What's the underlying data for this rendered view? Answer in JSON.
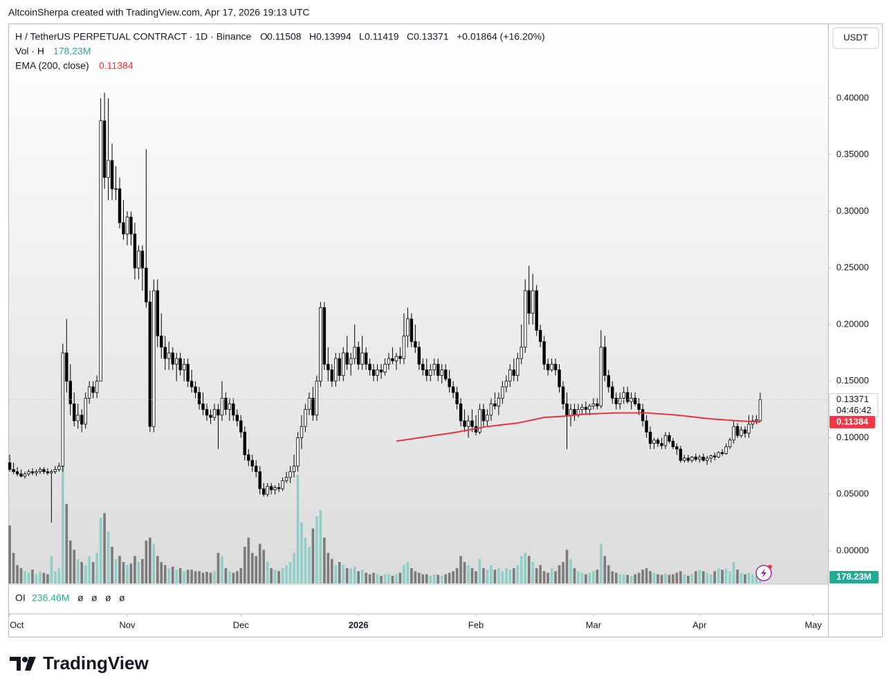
{
  "header": "AltcoinSherpa created with TradingView.com, Apr 17, 2026 19:13 UTC",
  "chart_data": {
    "type": "candlestick",
    "title": "H / TetherUS PERPETUAL CONTRACT · 1D · Binance",
    "ohlc_prefixes": [
      "O",
      "H",
      "L",
      "C"
    ],
    "change": "+0.01864 (+16.20%)",
    "volume_title": "Vol · H",
    "volume_label": "178.23M",
    "currency": "USDT",
    "countdown": "04:46:42",
    "up_color": "#ffffff",
    "down_color": "#000000",
    "wick_color": "#000000",
    "volume_up_color": "#8fcfc8",
    "volume_down_color": "#7b7b7b",
    "candles": [
      [
        0.078,
        0.085,
        0.07,
        0.072
      ],
      [
        0.072,
        0.078,
        0.068,
        0.07
      ],
      [
        0.07,
        0.074,
        0.066,
        0.068
      ],
      [
        0.068,
        0.072,
        0.065,
        0.066
      ],
      [
        0.066,
        0.07,
        0.064,
        0.068
      ],
      [
        0.068,
        0.072,
        0.066,
        0.07
      ],
      [
        0.07,
        0.073,
        0.067,
        0.069
      ],
      [
        0.069,
        0.072,
        0.066,
        0.07
      ],
      [
        0.07,
        0.074,
        0.068,
        0.072
      ],
      [
        0.072,
        0.074,
        0.068,
        0.07
      ],
      [
        0.07,
        0.073,
        0.067,
        0.069
      ],
      [
        0.069,
        0.072,
        0.025,
        0.07
      ],
      [
        0.07,
        0.075,
        0.068,
        0.072
      ],
      [
        0.072,
        0.078,
        0.07,
        0.075
      ],
      [
        0.075,
        0.183,
        0.07,
        0.175
      ],
      [
        0.175,
        0.205,
        0.14,
        0.15
      ],
      [
        0.15,
        0.165,
        0.12,
        0.13
      ],
      [
        0.13,
        0.14,
        0.11,
        0.115
      ],
      [
        0.115,
        0.13,
        0.108,
        0.12
      ],
      [
        0.12,
        0.125,
        0.105,
        0.112
      ],
      [
        0.112,
        0.14,
        0.108,
        0.135
      ],
      [
        0.135,
        0.15,
        0.13,
        0.145
      ],
      [
        0.145,
        0.15,
        0.135,
        0.14
      ],
      [
        0.14,
        0.155,
        0.135,
        0.15
      ],
      [
        0.15,
        0.4,
        0.15,
        0.38
      ],
      [
        0.38,
        0.405,
        0.32,
        0.33
      ],
      [
        0.33,
        0.4,
        0.31,
        0.345
      ],
      [
        0.345,
        0.36,
        0.31,
        0.32
      ],
      [
        0.32,
        0.34,
        0.31,
        0.32
      ],
      [
        0.32,
        0.33,
        0.285,
        0.29
      ],
      [
        0.29,
        0.31,
        0.275,
        0.28
      ],
      [
        0.28,
        0.3,
        0.27,
        0.295
      ],
      [
        0.295,
        0.3,
        0.27,
        0.28
      ],
      [
        0.28,
        0.29,
        0.24,
        0.25
      ],
      [
        0.25,
        0.27,
        0.24,
        0.265
      ],
      [
        0.265,
        0.27,
        0.23,
        0.25
      ],
      [
        0.25,
        0.355,
        0.215,
        0.22
      ],
      [
        0.22,
        0.23,
        0.105,
        0.11
      ],
      [
        0.11,
        0.24,
        0.105,
        0.23
      ],
      [
        0.23,
        0.24,
        0.18,
        0.19
      ],
      [
        0.19,
        0.21,
        0.17,
        0.18
      ],
      [
        0.18,
        0.19,
        0.16,
        0.17
      ],
      [
        0.17,
        0.185,
        0.16,
        0.175
      ],
      [
        0.175,
        0.18,
        0.16,
        0.165
      ],
      [
        0.165,
        0.175,
        0.15,
        0.17
      ],
      [
        0.17,
        0.175,
        0.155,
        0.16
      ],
      [
        0.16,
        0.17,
        0.15,
        0.165
      ],
      [
        0.165,
        0.17,
        0.145,
        0.15
      ],
      [
        0.15,
        0.16,
        0.14,
        0.145
      ],
      [
        0.145,
        0.15,
        0.135,
        0.14
      ],
      [
        0.14,
        0.145,
        0.125,
        0.13
      ],
      [
        0.13,
        0.14,
        0.12,
        0.125
      ],
      [
        0.125,
        0.13,
        0.115,
        0.12
      ],
      [
        0.12,
        0.125,
        0.112,
        0.118
      ],
      [
        0.118,
        0.13,
        0.115,
        0.125
      ],
      [
        0.125,
        0.13,
        0.09,
        0.12
      ],
      [
        0.12,
        0.15,
        0.115,
        0.135
      ],
      [
        0.135,
        0.14,
        0.12,
        0.125
      ],
      [
        0.125,
        0.135,
        0.115,
        0.13
      ],
      [
        0.13,
        0.135,
        0.115,
        0.12
      ],
      [
        0.12,
        0.125,
        0.11,
        0.115
      ],
      [
        0.115,
        0.12,
        0.1,
        0.105
      ],
      [
        0.105,
        0.11,
        0.08,
        0.085
      ],
      [
        0.085,
        0.09,
        0.075,
        0.08
      ],
      [
        0.08,
        0.085,
        0.07,
        0.075
      ],
      [
        0.075,
        0.08,
        0.065,
        0.07
      ],
      [
        0.07,
        0.075,
        0.05,
        0.055
      ],
      [
        0.055,
        0.06,
        0.048,
        0.05
      ],
      [
        0.05,
        0.06,
        0.048,
        0.057
      ],
      [
        0.057,
        0.06,
        0.05,
        0.054
      ],
      [
        0.054,
        0.058,
        0.05,
        0.056
      ],
      [
        0.056,
        0.06,
        0.052,
        0.055
      ],
      [
        0.055,
        0.065,
        0.053,
        0.062
      ],
      [
        0.062,
        0.07,
        0.06,
        0.065
      ],
      [
        0.065,
        0.075,
        0.06,
        0.07
      ],
      [
        0.07,
        0.085,
        0.065,
        0.075
      ],
      [
        0.075,
        0.105,
        0.07,
        0.1
      ],
      [
        0.1,
        0.12,
        0.09,
        0.11
      ],
      [
        0.11,
        0.13,
        0.105,
        0.125
      ],
      [
        0.125,
        0.14,
        0.12,
        0.135
      ],
      [
        0.135,
        0.145,
        0.115,
        0.12
      ],
      [
        0.12,
        0.155,
        0.115,
        0.15
      ],
      [
        0.15,
        0.22,
        0.145,
        0.215
      ],
      [
        0.215,
        0.22,
        0.16,
        0.165
      ],
      [
        0.165,
        0.18,
        0.15,
        0.16
      ],
      [
        0.16,
        0.165,
        0.145,
        0.15
      ],
      [
        0.15,
        0.175,
        0.145,
        0.17
      ],
      [
        0.17,
        0.175,
        0.15,
        0.155
      ],
      [
        0.155,
        0.18,
        0.15,
        0.175
      ],
      [
        0.175,
        0.19,
        0.16,
        0.165
      ],
      [
        0.165,
        0.175,
        0.155,
        0.17
      ],
      [
        0.17,
        0.2,
        0.165,
        0.18
      ],
      [
        0.18,
        0.185,
        0.16,
        0.165
      ],
      [
        0.165,
        0.19,
        0.16,
        0.175
      ],
      [
        0.175,
        0.18,
        0.16,
        0.165
      ],
      [
        0.165,
        0.17,
        0.155,
        0.16
      ],
      [
        0.16,
        0.165,
        0.15,
        0.155
      ],
      [
        0.155,
        0.165,
        0.15,
        0.16
      ],
      [
        0.16,
        0.165,
        0.152,
        0.158
      ],
      [
        0.158,
        0.17,
        0.155,
        0.165
      ],
      [
        0.165,
        0.175,
        0.16,
        0.17
      ],
      [
        0.17,
        0.18,
        0.165,
        0.168
      ],
      [
        0.168,
        0.175,
        0.16,
        0.172
      ],
      [
        0.172,
        0.18,
        0.165,
        0.17
      ],
      [
        0.17,
        0.21,
        0.165,
        0.19
      ],
      [
        0.19,
        0.215,
        0.18,
        0.205
      ],
      [
        0.205,
        0.21,
        0.18,
        0.185
      ],
      [
        0.185,
        0.2,
        0.175,
        0.18
      ],
      [
        0.18,
        0.185,
        0.16,
        0.165
      ],
      [
        0.165,
        0.17,
        0.155,
        0.16
      ],
      [
        0.16,
        0.17,
        0.15,
        0.155
      ],
      [
        0.155,
        0.165,
        0.15,
        0.16
      ],
      [
        0.16,
        0.17,
        0.155,
        0.165
      ],
      [
        0.165,
        0.17,
        0.15,
        0.155
      ],
      [
        0.155,
        0.165,
        0.148,
        0.16
      ],
      [
        0.16,
        0.165,
        0.15,
        0.152
      ],
      [
        0.152,
        0.16,
        0.14,
        0.145
      ],
      [
        0.145,
        0.15,
        0.135,
        0.14
      ],
      [
        0.14,
        0.145,
        0.125,
        0.13
      ],
      [
        0.13,
        0.135,
        0.11,
        0.115
      ],
      [
        0.115,
        0.125,
        0.105,
        0.11
      ],
      [
        0.11,
        0.12,
        0.1,
        0.115
      ],
      [
        0.115,
        0.125,
        0.105,
        0.11
      ],
      [
        0.11,
        0.12,
        0.102,
        0.105
      ],
      [
        0.105,
        0.13,
        0.103,
        0.125
      ],
      [
        0.125,
        0.13,
        0.11,
        0.115
      ],
      [
        0.115,
        0.125,
        0.11,
        0.12
      ],
      [
        0.12,
        0.135,
        0.115,
        0.13
      ],
      [
        0.13,
        0.14,
        0.125,
        0.128
      ],
      [
        0.128,
        0.14,
        0.12,
        0.135
      ],
      [
        0.135,
        0.15,
        0.13,
        0.145
      ],
      [
        0.145,
        0.155,
        0.14,
        0.15
      ],
      [
        0.15,
        0.165,
        0.145,
        0.16
      ],
      [
        0.16,
        0.17,
        0.15,
        0.155
      ],
      [
        0.155,
        0.175,
        0.15,
        0.17
      ],
      [
        0.17,
        0.2,
        0.165,
        0.18
      ],
      [
        0.18,
        0.24,
        0.175,
        0.23
      ],
      [
        0.23,
        0.252,
        0.2,
        0.21
      ],
      [
        0.21,
        0.245,
        0.2,
        0.23
      ],
      [
        0.23,
        0.235,
        0.19,
        0.195
      ],
      [
        0.195,
        0.2,
        0.18,
        0.185
      ],
      [
        0.185,
        0.19,
        0.16,
        0.165
      ],
      [
        0.165,
        0.17,
        0.155,
        0.16
      ],
      [
        0.16,
        0.17,
        0.158,
        0.165
      ],
      [
        0.165,
        0.17,
        0.155,
        0.16
      ],
      [
        0.16,
        0.165,
        0.14,
        0.145
      ],
      [
        0.145,
        0.15,
        0.125,
        0.13
      ],
      [
        0.13,
        0.14,
        0.09,
        0.12
      ],
      [
        0.12,
        0.13,
        0.11,
        0.125
      ],
      [
        0.125,
        0.13,
        0.115,
        0.12
      ],
      [
        0.12,
        0.13,
        0.118,
        0.125
      ],
      [
        0.125,
        0.13,
        0.12,
        0.127
      ],
      [
        0.127,
        0.132,
        0.12,
        0.125
      ],
      [
        0.125,
        0.13,
        0.12,
        0.128
      ],
      [
        0.128,
        0.135,
        0.125,
        0.13
      ],
      [
        0.13,
        0.135,
        0.125,
        0.128
      ],
      [
        0.128,
        0.195,
        0.126,
        0.18
      ],
      [
        0.18,
        0.19,
        0.15,
        0.155
      ],
      [
        0.155,
        0.16,
        0.14,
        0.145
      ],
      [
        0.145,
        0.15,
        0.13,
        0.135
      ],
      [
        0.135,
        0.14,
        0.125,
        0.13
      ],
      [
        0.13,
        0.14,
        0.125,
        0.135
      ],
      [
        0.135,
        0.145,
        0.13,
        0.14
      ],
      [
        0.14,
        0.145,
        0.13,
        0.132
      ],
      [
        0.132,
        0.14,
        0.125,
        0.135
      ],
      [
        0.135,
        0.14,
        0.128,
        0.13
      ],
      [
        0.13,
        0.135,
        0.12,
        0.125
      ],
      [
        0.125,
        0.13,
        0.11,
        0.115
      ],
      [
        0.115,
        0.12,
        0.1,
        0.105
      ],
      [
        0.105,
        0.11,
        0.09,
        0.095
      ],
      [
        0.095,
        0.1,
        0.09,
        0.098
      ],
      [
        0.098,
        0.1,
        0.092,
        0.095
      ],
      [
        0.095,
        0.1,
        0.09,
        0.093
      ],
      [
        0.093,
        0.105,
        0.09,
        0.102
      ],
      [
        0.102,
        0.105,
        0.095,
        0.097
      ],
      [
        0.097,
        0.1,
        0.09,
        0.092
      ],
      [
        0.092,
        0.095,
        0.085,
        0.09
      ],
      [
        0.09,
        0.093,
        0.078,
        0.08
      ],
      [
        0.08,
        0.085,
        0.078,
        0.082
      ],
      [
        0.082,
        0.085,
        0.078,
        0.08
      ],
      [
        0.08,
        0.084,
        0.078,
        0.083
      ],
      [
        0.083,
        0.086,
        0.079,
        0.081
      ],
      [
        0.081,
        0.085,
        0.078,
        0.083
      ],
      [
        0.083,
        0.086,
        0.079,
        0.08
      ],
      [
        0.08,
        0.084,
        0.076,
        0.082
      ],
      [
        0.082,
        0.085,
        0.078,
        0.084
      ],
      [
        0.084,
        0.087,
        0.08,
        0.083
      ],
      [
        0.083,
        0.088,
        0.082,
        0.087
      ],
      [
        0.087,
        0.09,
        0.084,
        0.086
      ],
      [
        0.086,
        0.095,
        0.085,
        0.092
      ],
      [
        0.092,
        0.1,
        0.09,
        0.098
      ],
      [
        0.098,
        0.115,
        0.095,
        0.11
      ],
      [
        0.11,
        0.113,
        0.1,
        0.102
      ],
      [
        0.102,
        0.11,
        0.1,
        0.107
      ],
      [
        0.107,
        0.11,
        0.1,
        0.104
      ],
      [
        0.104,
        0.12,
        0.1,
        0.112
      ],
      [
        0.112,
        0.12,
        0.108,
        0.115
      ],
      [
        0.115,
        0.12,
        0.112,
        0.116
      ],
      [
        0.11508,
        0.13994,
        0.11419,
        0.13371
      ]
    ],
    "volume": [
      1900,
      1000,
      600,
      500,
      400,
      350,
      450,
      300,
      400,
      350,
      300,
      900,
      400,
      500,
      4400,
      2600,
      1400,
      1100,
      800,
      700,
      600,
      900,
      700,
      1000,
      2150,
      2300,
      1700,
      1200,
      800,
      900,
      700,
      600,
      650,
      900,
      700,
      800,
      1400,
      1500,
      1300,
      900,
      700,
      600,
      500,
      550,
      450,
      500,
      400,
      450,
      450,
      400,
      400,
      350,
      380,
      350,
      400,
      1000,
      900,
      500,
      400,
      350,
      400,
      500,
      1200,
      1500,
      1000,
      900,
      1300,
      1100,
      700,
      500,
      450,
      400,
      500,
      600,
      700,
      1000,
      3560,
      2000,
      1500,
      1200,
      1800,
      2200,
      2400,
      1500,
      1000,
      800,
      600,
      700,
      600,
      500,
      500,
      550,
      400,
      450,
      350,
      300,
      350,
      300,
      250,
      300,
      300,
      250,
      300,
      350,
      600,
      700,
      500,
      400,
      350,
      300,
      300,
      250,
      300,
      280,
      250,
      300,
      350,
      400,
      500,
      900,
      700,
      600,
      500,
      400,
      800,
      500,
      450,
      600,
      450,
      500,
      400,
      500,
      450,
      500,
      600,
      900,
      1000,
      900,
      700,
      500,
      600,
      400,
      350,
      500,
      400,
      600,
      700,
      1100,
      800,
      500,
      400,
      350,
      300,
      350,
      400,
      450,
      1300,
      900,
      600,
      400,
      350,
      300,
      300,
      280,
      250,
      300,
      350,
      450,
      500,
      400,
      350,
      300,
      280,
      320,
      280,
      300,
      350,
      400,
      300,
      250,
      300,
      400,
      450,
      400,
      350,
      300,
      400,
      500,
      450,
      500,
      400,
      700,
      450,
      350,
      300,
      350,
      300,
      250,
      178.23
    ],
    "volume_ylim": [
      0,
      4600
    ],
    "ema": {
      "name": "EMA (200, close)",
      "color": "#e8323c",
      "x": [
        102,
        110,
        118,
        126,
        134,
        141,
        146,
        152,
        160,
        168,
        176,
        184,
        192,
        198
      ],
      "values": [
        0.097,
        0.101,
        0.105,
        0.11,
        0.113,
        0.118,
        0.119,
        0.121,
        0.122,
        0.122,
        0.12,
        0.117,
        0.115,
        0.11384
      ]
    },
    "ylim": [
      -0.0287,
      0.4654
    ],
    "yticks": [
      {
        "value": 0,
        "label": "0.00000"
      },
      {
        "value": 0.05,
        "label": "0.05000"
      },
      {
        "value": 0.1,
        "label": "0.10000"
      },
      {
        "value": 0.15,
        "label": "0.15000"
      },
      {
        "value": 0.2,
        "label": "0.20000"
      },
      {
        "value": 0.25,
        "label": "0.25000"
      },
      {
        "value": 0.3,
        "label": "0.30000"
      },
      {
        "value": 0.35,
        "label": "0.35000"
      },
      {
        "value": 0.4,
        "label": "0.40000"
      }
    ],
    "xlim": [
      -0.2,
      215.9
    ],
    "xticks": [
      {
        "value": 0,
        "label": "Oct"
      },
      {
        "value": 31,
        "label": "Nov"
      },
      {
        "value": 61,
        "label": "Dec"
      },
      {
        "value": 92,
        "label": "2026"
      },
      {
        "value": 123,
        "label": "Feb"
      },
      {
        "value": 154,
        "label": "Mar"
      },
      {
        "value": 182,
        "label": "Apr"
      },
      {
        "value": 212,
        "label": "May"
      }
    ],
    "oi": {
      "name": "OI",
      "label": "236.46M",
      "placeholders": [
        "ø",
        "ø",
        "ø",
        "ø"
      ]
    },
    "grid": false
  },
  "footer": "TradingView"
}
